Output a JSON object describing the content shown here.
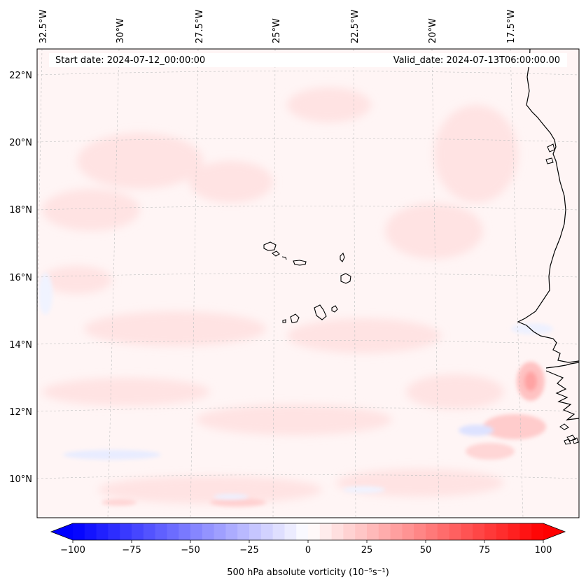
{
  "map": {
    "start_date": "Start date: 2024-07-12_00:00:00",
    "valid_date": "Valid_date: 2024-07-13T06:00:00.00",
    "lon_labels": [
      "32.5°W",
      "30°W",
      "27.5°W",
      "25°W",
      "22.5°W",
      "20°W",
      "17.5°W"
    ],
    "lat_labels": [
      "22°N",
      "20°N",
      "18°N",
      "16°N",
      "14°N",
      "12°N",
      "10°N"
    ]
  },
  "colorbar": {
    "ticks": [
      "−100",
      "−75",
      "−50",
      "−25",
      "0",
      "25",
      "50",
      "75",
      "100"
    ],
    "tick_values": [
      -100,
      -75,
      -50,
      -25,
      0,
      25,
      50,
      75,
      100
    ],
    "label": "500 hPa absolute vorticity (10⁻⁵s⁻¹)",
    "min_color": "#0000ff",
    "mid_color": "#ffffff",
    "max_color": "#ff0000"
  }
}
